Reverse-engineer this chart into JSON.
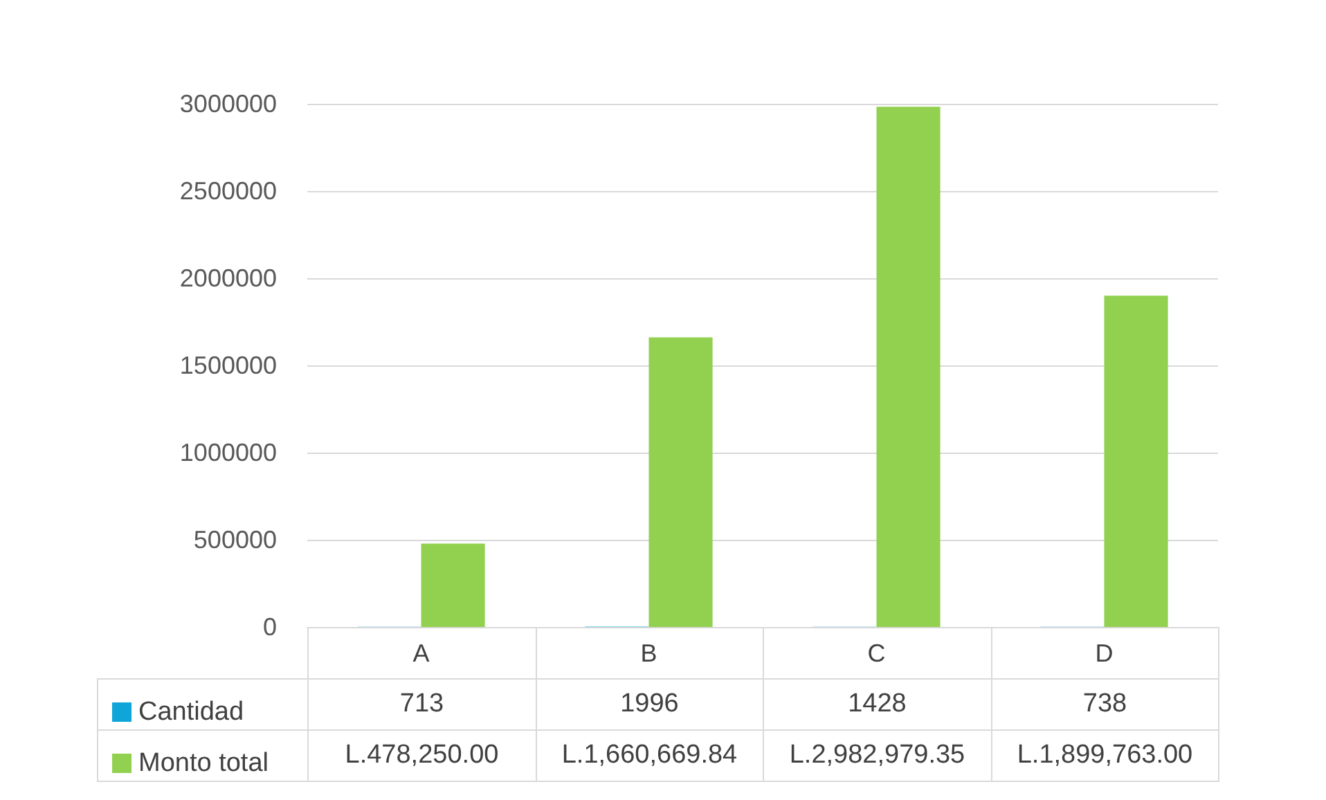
{
  "chart_data": {
    "type": "bar",
    "categories": [
      "A",
      "B",
      "C",
      "D"
    ],
    "series": [
      {
        "name": "Cantidad",
        "color": "#0ea5d9",
        "values": [
          713,
          1996,
          1428,
          738
        ],
        "value_labels": [
          "713",
          "1996",
          "1428",
          "738"
        ]
      },
      {
        "name": "Monto total",
        "color": "#92d050",
        "values": [
          478250.0,
          1660669.84,
          2982979.35,
          1899763.0
        ],
        "value_labels": [
          "L.478,250.00",
          "L.1,660,669.84",
          "L.2,982,979.35",
          "L.1,899,763.00"
        ]
      }
    ],
    "ylim": [
      0,
      3000000
    ],
    "yticks": [
      0,
      500000,
      1000000,
      1500000,
      2000000,
      2500000,
      3000000
    ],
    "grid": "y",
    "legend": "bottom left"
  }
}
